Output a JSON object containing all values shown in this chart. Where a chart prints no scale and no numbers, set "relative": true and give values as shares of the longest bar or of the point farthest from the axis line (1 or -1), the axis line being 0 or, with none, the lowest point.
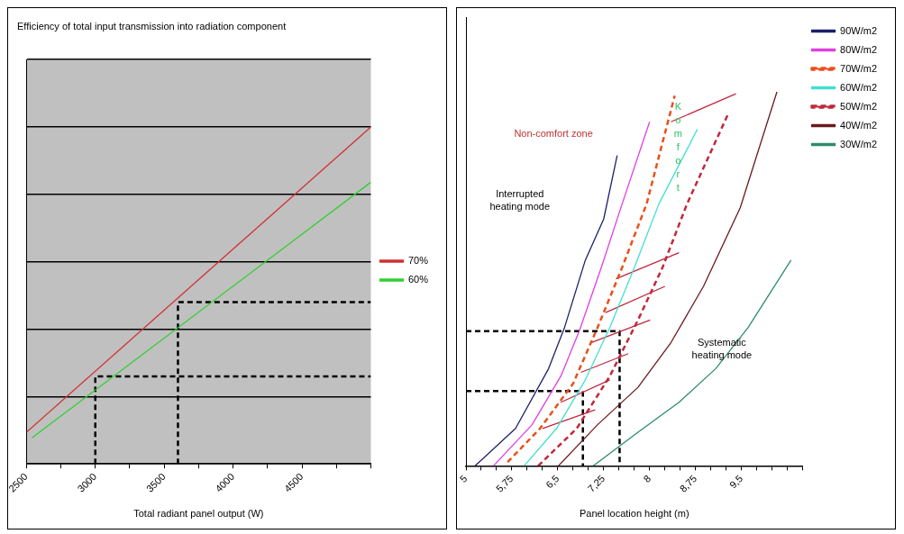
{
  "chart_data": [
    {
      "type": "line",
      "title": "Efficiency of total input transmission into radiation component",
      "xlabel": "Total radiant panel output (W)",
      "relative": true,
      "grid": "y",
      "legend": "right",
      "xlim": [
        2500,
        5000
      ],
      "xticks": [
        2500,
        {
          "value": 2750,
          "label": null
        },
        3000,
        {
          "value": 3250,
          "label": null
        },
        3500,
        {
          "value": 3750,
          "label": null
        },
        4000,
        {
          "value": 4250,
          "label": null
        },
        4500,
        {
          "value": 4750,
          "label": null
        },
        {
          "value": 5000,
          "label": null
        }
      ],
      "series": [
        {
          "name": "70%",
          "color": "#d03030",
          "x": [
            2500,
            5000
          ],
          "values": [
            0.094,
            1.0
          ]
        },
        {
          "name": "60%",
          "color": "#30d030",
          "x": [
            2540,
            5000
          ],
          "values": [
            0.077,
            0.836
          ]
        },
        {
          "color": "#000000",
          "line_style": "dashed",
          "x": [
            3000,
            3000,
            5000
          ],
          "values": [
            0,
            0.26,
            0.26
          ]
        },
        {
          "color": "#000000",
          "line_style": "dashed",
          "x": [
            3600,
            3600,
            5000
          ],
          "values": [
            0,
            0.48,
            0.48
          ]
        }
      ]
    },
    {
      "type": "line",
      "xlabel": "Panel location height (m)",
      "relative": true,
      "legend": "top right",
      "xlim": [
        5,
        10.5
      ],
      "xticks": [
        5,
        {
          "value": 5.25,
          "label": null
        },
        {
          "value": 5.5,
          "label": null
        },
        {
          "value": 5.75,
          "label": "5,75"
        },
        {
          "value": 6,
          "label": null
        },
        {
          "value": 6.25,
          "label": null
        },
        {
          "value": 6.5,
          "label": "6,5"
        },
        {
          "value": 6.75,
          "label": null
        },
        {
          "value": 7,
          "label": null
        },
        {
          "value": 7.25,
          "label": "7,25"
        },
        {
          "value": 7.5,
          "label": null
        },
        {
          "value": 7.75,
          "label": null
        },
        8,
        {
          "value": 8.25,
          "label": null
        },
        {
          "value": 8.5,
          "label": null
        },
        {
          "value": 8.75,
          "label": "8,75"
        },
        {
          "value": 9,
          "label": null
        },
        {
          "value": 9.25,
          "label": null
        },
        {
          "value": 9.5,
          "label": "9,5"
        },
        {
          "value": 9.75,
          "label": null
        },
        {
          "value": 10,
          "label": null
        },
        {
          "value": 10.25,
          "label": null
        },
        {
          "value": 10.5,
          "label": null
        }
      ],
      "annotations": [
        "Non-comfort zone",
        "Interrupted heating mode",
        "Komfort",
        "Systematic heating mode"
      ],
      "series": [
        {
          "name": "90W/m2",
          "color": "#1f1f6b",
          "x": [
            5.15,
            5.81,
            6.35,
            6.61,
            6.95,
            7.25,
            7.47
          ],
          "values": [
            0,
            0.1,
            0.26,
            0.37,
            0.55,
            0.66,
            0.83
          ]
        },
        {
          "name": "80W/m2",
          "color": "#e040e0",
          "x": [
            5.45,
            6.08,
            6.55,
            6.85,
            7.21,
            7.55,
            8.0
          ],
          "values": [
            0,
            0.11,
            0.24,
            0.36,
            0.53,
            0.7,
            0.92
          ]
        },
        {
          "name": "70W/m2",
          "color": "#e8501a",
          "line_style": "dashed",
          "x": [
            5.68,
            6.21,
            6.75,
            7.15,
            7.55,
            7.95,
            8.41
          ],
          "values": [
            0.01,
            0.1,
            0.22,
            0.37,
            0.53,
            0.7,
            0.99
          ]
        },
        {
          "name": "60W/m2",
          "color": "#40e0d0",
          "x": [
            5.95,
            6.48,
            6.95,
            7.35,
            7.75,
            8.15,
            8.78
          ],
          "values": [
            0,
            0.1,
            0.23,
            0.37,
            0.53,
            0.7,
            0.9
          ]
        },
        {
          "name": "50W/m2",
          "color": "#c0283c",
          "line_style": "dashed",
          "x": [
            6.18,
            6.81,
            7.35,
            7.81,
            8.21,
            8.61,
            9.28
          ],
          "values": [
            0,
            0.1,
            0.24,
            0.39,
            0.53,
            0.7,
            0.94
          ]
        },
        {
          "name": "40W/m2",
          "color": "#6b1a1a",
          "x": [
            6.51,
            7.15,
            7.81,
            8.35,
            8.88,
            9.48,
            10.08
          ],
          "values": [
            0,
            0.11,
            0.21,
            0.33,
            0.48,
            0.69,
            1.0
          ]
        },
        {
          "name": "30W/m2",
          "color": "#2e8b6e",
          "x": [
            7.08,
            7.81,
            8.48,
            9.08,
            9.61,
            10.31
          ],
          "values": [
            0,
            0.09,
            0.17,
            0.26,
            0.37,
            0.55
          ]
        },
        {
          "color": "#c0283c",
          "x": [
            9.41,
            8.35
          ],
          "values": [
            0.995,
            0.92
          ]
        },
        {
          "color": "#c0283c",
          "x": [
            8.48,
            7.45
          ],
          "values": [
            0.57,
            0.5
          ]
        },
        {
          "color": "#c0283c",
          "x": [
            8.25,
            7.28
          ],
          "values": [
            0.48,
            0.41
          ]
        },
        {
          "color": "#c0283c",
          "x": [
            8.01,
            7.05
          ],
          "values": [
            0.39,
            0.33
          ]
        },
        {
          "color": "#c0283c",
          "x": [
            7.65,
            6.88
          ],
          "values": [
            0.3,
            0.25
          ]
        },
        {
          "color": "#c0283c",
          "x": [
            7.35,
            6.55
          ],
          "values": [
            0.23,
            0.17
          ]
        },
        {
          "color": "#c0283c",
          "x": [
            7.11,
            6.25
          ],
          "values": [
            0.15,
            0.1
          ]
        },
        {
          "color": "#000000",
          "line_style": "dashed",
          "x": [
            5,
            7.51,
            7.51
          ],
          "values": [
            0.36,
            0.36,
            0
          ]
        },
        {
          "color": "#000000",
          "line_style": "dashed",
          "x": [
            5,
            6.91,
            6.91
          ],
          "values": [
            0.2,
            0.2,
            0
          ]
        }
      ]
    }
  ]
}
